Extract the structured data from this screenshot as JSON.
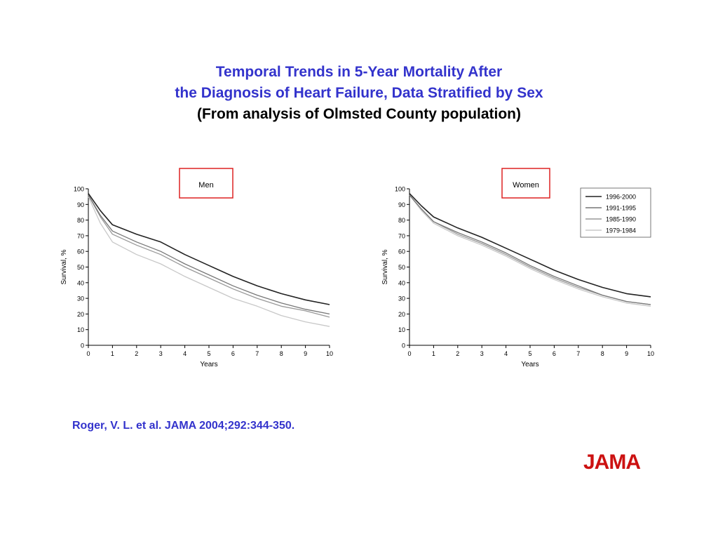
{
  "title": {
    "line1": "Temporal Trends in 5-Year Mortality After",
    "line2": "the Diagnosis of Heart Failure, Data Stratified by Sex",
    "line3": "(From analysis of Olmsted County population)"
  },
  "citation": "Roger, V. L. et al. JAMA 2004;292:344-350.",
  "logo_text": "JAMA",
  "colors": {
    "title_blue": "#3333cc",
    "logo_red": "#cc1111",
    "box_red": "#dd2222",
    "series": [
      "#222222",
      "#777777",
      "#999999",
      "#c8c8c8"
    ]
  },
  "chart_data": [
    {
      "type": "line",
      "title": "Men",
      "xlabel": "Years",
      "ylabel": "Survival, %",
      "xlim": [
        0,
        10
      ],
      "ylim": [
        0,
        100
      ],
      "xticks": [
        0,
        1,
        2,
        3,
        4,
        5,
        6,
        7,
        8,
        9,
        10
      ],
      "yticks": [
        0,
        10,
        20,
        30,
        40,
        50,
        60,
        70,
        80,
        90,
        100
      ],
      "grid": false,
      "x": [
        0,
        0.5,
        1,
        2,
        3,
        4,
        5,
        6,
        7,
        8,
        9,
        10
      ],
      "series": [
        {
          "name": "1996-2000",
          "values": [
            97,
            86,
            77,
            71,
            66,
            58,
            51,
            44,
            38,
            33,
            29,
            26
          ]
        },
        {
          "name": "1991-1995",
          "values": [
            96,
            83,
            73,
            66,
            60,
            52,
            45,
            38,
            32,
            27,
            23,
            20
          ]
        },
        {
          "name": "1985-1990",
          "values": [
            96,
            82,
            71,
            64,
            58,
            50,
            43,
            36,
            30,
            25,
            22,
            18
          ]
        },
        {
          "name": "1979-1984",
          "values": [
            95,
            78,
            66,
            58,
            52,
            44,
            37,
            30,
            25,
            19,
            15,
            12
          ]
        }
      ]
    },
    {
      "type": "line",
      "title": "Women",
      "xlabel": "Years",
      "ylabel": "Survival, %",
      "xlim": [
        0,
        10
      ],
      "ylim": [
        0,
        100
      ],
      "xticks": [
        0,
        1,
        2,
        3,
        4,
        5,
        6,
        7,
        8,
        9,
        10
      ],
      "yticks": [
        0,
        10,
        20,
        30,
        40,
        50,
        60,
        70,
        80,
        90,
        100
      ],
      "grid": false,
      "legend": "top-right",
      "x": [
        0,
        0.5,
        1,
        2,
        3,
        4,
        5,
        6,
        7,
        8,
        9,
        10
      ],
      "series": [
        {
          "name": "1996-2000",
          "values": [
            97,
            89,
            82,
            75,
            69,
            62,
            55,
            48,
            42,
            37,
            33,
            31
          ]
        },
        {
          "name": "1991-1995",
          "values": [
            96,
            87,
            79,
            72,
            66,
            59,
            51,
            44,
            38,
            32,
            28,
            26
          ]
        },
        {
          "name": "1985-1990",
          "values": [
            96,
            87,
            79,
            71,
            65,
            58,
            50,
            43,
            37,
            32,
            28,
            26
          ]
        },
        {
          "name": "1979-1984",
          "values": [
            96,
            86,
            78,
            70,
            64,
            57,
            49,
            42,
            36,
            31,
            27,
            25
          ]
        }
      ]
    }
  ]
}
